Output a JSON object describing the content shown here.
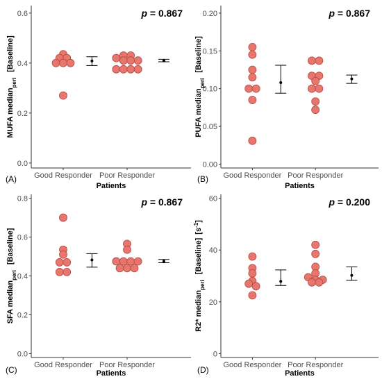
{
  "chart_data": [
    {
      "type": "scatter",
      "panel_letter": "(A)",
      "annotation_p": "p",
      "annotation_rest": " = 0.867",
      "ylabel_main": "MUFA median",
      "ylabel_sub": "peri",
      "ylabel_bracket": "[Baseline]",
      "ylabel_unit_base": "",
      "ylabel_unit_sup": "",
      "ylabel_unit_close": "",
      "xlabel": "Patients",
      "categories": [
        "Good Responder",
        "Poor Responder"
      ],
      "ylim": [
        -0.02,
        0.63
      ],
      "yticks": [
        0.0,
        0.2,
        0.4,
        0.6
      ],
      "ytick_labels": [
        "0.0",
        "0.2",
        "0.4",
        "0.6"
      ],
      "series": [
        {
          "category": "Good Responder",
          "points": [
            0.435,
            0.42,
            0.42,
            0.4,
            0.4,
            0.4,
            0.27
          ],
          "mean": 0.408,
          "err_low": 0.39,
          "err_high": 0.425
        },
        {
          "category": "Poor Responder",
          "points": [
            0.43,
            0.43,
            0.42,
            0.41,
            0.41,
            0.41,
            0.375,
            0.375,
            0.375,
            0.375
          ],
          "mean": 0.41,
          "err_low": 0.405,
          "err_high": 0.415
        }
      ]
    },
    {
      "type": "scatter",
      "panel_letter": "(B)",
      "annotation_p": "p",
      "annotation_rest": " = 0.867",
      "ylabel_main": "PUFA median",
      "ylabel_sub": "peri",
      "ylabel_bracket": "[Baseline]",
      "ylabel_unit_base": "",
      "ylabel_unit_sup": "",
      "ylabel_unit_close": "",
      "xlabel": "Patients",
      "categories": [
        "Good Responder",
        "Poor Responder"
      ],
      "ylim": [
        -0.005,
        0.21
      ],
      "yticks": [
        0.0,
        0.05,
        0.1,
        0.15,
        0.2
      ],
      "ytick_labels": [
        "0.00",
        "0.05",
        "0.10",
        "0.15",
        "0.20"
      ],
      "series": [
        {
          "category": "Good Responder",
          "points": [
            0.155,
            0.145,
            0.125,
            0.115,
            0.1,
            0.1,
            0.085,
            0.031
          ],
          "mean": 0.108,
          "err_low": 0.094,
          "err_high": 0.131
        },
        {
          "category": "Poor Responder",
          "points": [
            0.137,
            0.137,
            0.117,
            0.117,
            0.11,
            0.1,
            0.1,
            0.083,
            0.072
          ],
          "mean": 0.113,
          "err_low": 0.107,
          "err_high": 0.118
        }
      ]
    },
    {
      "type": "scatter",
      "panel_letter": "(C)",
      "annotation_p": "p",
      "annotation_rest": " = 0.867",
      "ylabel_main": "SFA median",
      "ylabel_sub": "peri",
      "ylabel_bracket": "[Baseline]",
      "ylabel_unit_base": "",
      "ylabel_unit_sup": "",
      "ylabel_unit_close": "",
      "xlabel": "Patients",
      "categories": [
        "Good Responder",
        "Poor Responder"
      ],
      "ylim": [
        -0.02,
        0.82
      ],
      "yticks": [
        0.0,
        0.2,
        0.4,
        0.6,
        0.8
      ],
      "ytick_labels": [
        "0.0",
        "0.2",
        "0.4",
        "0.6",
        "0.8"
      ],
      "series": [
        {
          "category": "Good Responder",
          "points": [
            0.7,
            0.535,
            0.51,
            0.47,
            0.47,
            0.42,
            0.42
          ],
          "mean": 0.482,
          "err_low": 0.445,
          "err_high": 0.515
        },
        {
          "category": "Poor Responder",
          "points": [
            0.565,
            0.535,
            0.475,
            0.475,
            0.475,
            0.475,
            0.44,
            0.44,
            0.44
          ],
          "mean": 0.476,
          "err_low": 0.468,
          "err_high": 0.485
        }
      ]
    },
    {
      "type": "scatter",
      "panel_letter": "(D)",
      "annotation_p": "p",
      "annotation_rest": " = 0.200",
      "ylabel_main": "R2* median",
      "ylabel_sub": "peri",
      "ylabel_bracket": "[Baseline]",
      "ylabel_unit_base": "[s",
      "ylabel_unit_sup": "-1",
      "ylabel_unit_close": "]",
      "xlabel": "Patients",
      "categories": [
        "Good Responder",
        "Poor Responder"
      ],
      "ylim": [
        -1.5,
        61.5
      ],
      "yticks": [
        0,
        20,
        40,
        60
      ],
      "ytick_labels": [
        "0",
        "20",
        "40",
        "60"
      ],
      "series": [
        {
          "category": "Good Responder",
          "points": [
            37.5,
            33.0,
            31.0,
            28.0,
            27.0,
            26.0,
            22.5
          ],
          "mean": 27.9,
          "err_low": 26.3,
          "err_high": 32.3
        },
        {
          "category": "Poor Responder",
          "points": [
            42.0,
            38.5,
            33.5,
            31.0,
            29.5,
            28.5,
            28.5,
            27.5,
            27.5
          ],
          "mean": 30.2,
          "err_low": 28.3,
          "err_high": 33.5
        }
      ]
    }
  ]
}
